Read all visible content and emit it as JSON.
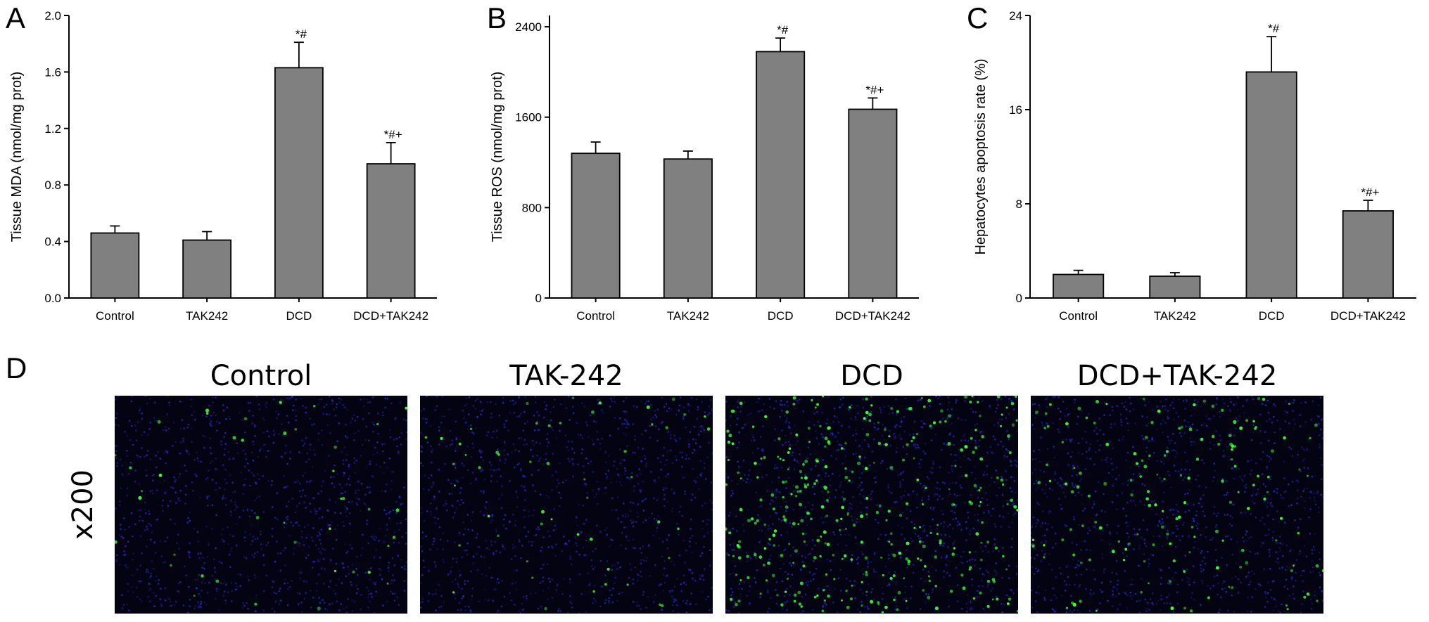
{
  "panel_letters": {
    "a": "A",
    "b": "B",
    "c": "C",
    "d": "D"
  },
  "chart_data": [
    {
      "type": "bar",
      "panel": "A",
      "categories": [
        "Control",
        "TAK242",
        "DCD",
        "DCD+TAK242"
      ],
      "values": [
        0.46,
        0.41,
        1.63,
        0.95
      ],
      "errors": [
        0.05,
        0.06,
        0.18,
        0.15
      ],
      "annotations": [
        "",
        "",
        "*#",
        "*#+"
      ],
      "ylabel": "Tissue MDA (nmol/mg prot)",
      "ylim": [
        0,
        2.0
      ],
      "yticks": [
        0.0,
        0.4,
        0.8,
        1.2,
        1.6,
        2.0
      ],
      "ytick_labels": [
        "0.0",
        "0.4",
        "0.8",
        "1.2",
        "1.6",
        "2.0"
      ],
      "bar_color": "#808080"
    },
    {
      "type": "bar",
      "panel": "B",
      "categories": [
        "Control",
        "TAK242",
        "DCD",
        "DCD+TAK242"
      ],
      "values": [
        1280,
        1230,
        2180,
        1670
      ],
      "errors": [
        100,
        70,
        120,
        100
      ],
      "annotations": [
        "",
        "",
        "*#",
        "*#+"
      ],
      "ylabel": "Tissue ROS (nmol/mg prot)",
      "ylim": [
        0,
        2500
      ],
      "yticks": [
        0,
        800,
        1600,
        2400
      ],
      "ytick_labels": [
        "0",
        "800",
        "1600",
        "2400"
      ],
      "bar_color": "#808080"
    },
    {
      "type": "bar",
      "panel": "C",
      "categories": [
        "Control",
        "TAK242",
        "DCD",
        "DCD+TAK242"
      ],
      "values": [
        2.0,
        1.85,
        19.2,
        7.4
      ],
      "errors": [
        0.35,
        0.3,
        3.0,
        0.9
      ],
      "annotations": [
        "",
        "",
        "*#",
        "*#+"
      ],
      "ylabel": "Hepatocytes apoptosis rate (%)",
      "ylim": [
        0,
        24
      ],
      "yticks": [
        0,
        8,
        16,
        24
      ],
      "ytick_labels": [
        "0",
        "8",
        "16",
        "24"
      ],
      "bar_color": "#808080"
    }
  ],
  "panel_d": {
    "titles": [
      "Control",
      "TAK-242",
      "DCD",
      "DCD+TAK-242"
    ],
    "magnification": "x200",
    "nuclei_color": "#2a2ad8",
    "apoptotic_color": "#3cff3c",
    "apoptotic_levels": [
      0.12,
      0.15,
      1.0,
      0.45
    ]
  }
}
